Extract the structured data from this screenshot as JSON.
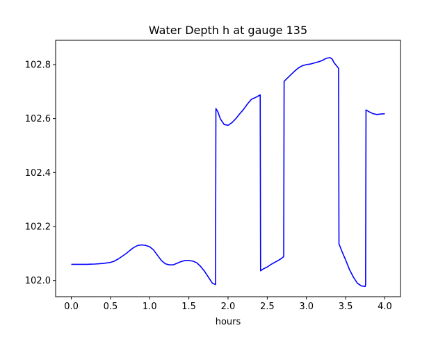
{
  "chart_data": {
    "type": "line",
    "title": "Water Depth h at gauge 135",
    "xlabel": "hours",
    "ylabel": "",
    "xlim": [
      -0.2,
      4.2
    ],
    "ylim": [
      101.94,
      102.89
    ],
    "xticks": [
      0.0,
      0.5,
      1.0,
      1.5,
      2.0,
      2.5,
      3.0,
      3.5,
      4.0
    ],
    "xtick_labels": [
      "0.0",
      "0.5",
      "1.0",
      "1.5",
      "2.0",
      "2.5",
      "3.0",
      "3.5",
      "4.0"
    ],
    "yticks": [
      102.0,
      102.2,
      102.4,
      102.6,
      102.8
    ],
    "ytick_labels": [
      "102.0",
      "102.2",
      "102.4",
      "102.6",
      "102.8"
    ],
    "grid": false,
    "legend": "none",
    "series": [
      {
        "color": "#0000ff",
        "x": [
          0.0,
          0.1,
          0.2,
          0.3,
          0.4,
          0.5,
          0.55,
          0.6,
          0.65,
          0.7,
          0.75,
          0.8,
          0.85,
          0.9,
          0.95,
          1.0,
          1.05,
          1.1,
          1.15,
          1.2,
          1.25,
          1.3,
          1.35,
          1.4,
          1.45,
          1.5,
          1.55,
          1.6,
          1.65,
          1.7,
          1.75,
          1.8,
          1.84,
          1.845,
          1.87,
          1.9,
          1.95,
          2.0,
          2.05,
          2.1,
          2.15,
          2.2,
          2.25,
          2.3,
          2.35,
          2.4,
          2.41,
          2.415,
          2.45,
          2.5,
          2.55,
          2.6,
          2.65,
          2.7,
          2.71,
          2.715,
          2.75,
          2.8,
          2.85,
          2.9,
          2.95,
          3.0,
          3.05,
          3.1,
          3.15,
          3.2,
          3.25,
          3.3,
          3.33,
          3.35,
          3.4,
          3.41,
          3.415,
          3.45,
          3.5,
          3.55,
          3.6,
          3.65,
          3.7,
          3.75,
          3.755,
          3.76,
          3.8,
          3.85,
          3.9,
          3.95,
          4.0
        ],
        "y": [
          102.06,
          102.06,
          102.06,
          102.061,
          102.063,
          102.067,
          102.072,
          102.08,
          102.09,
          102.1,
          102.112,
          102.123,
          102.13,
          102.132,
          102.13,
          102.125,
          102.113,
          102.093,
          102.074,
          102.062,
          102.058,
          102.058,
          102.064,
          102.07,
          102.074,
          102.074,
          102.072,
          102.066,
          102.052,
          102.034,
          102.012,
          101.99,
          101.985,
          102.637,
          102.625,
          102.6,
          102.578,
          102.575,
          102.585,
          102.6,
          102.618,
          102.635,
          102.655,
          102.672,
          102.678,
          102.686,
          102.688,
          102.036,
          102.043,
          102.05,
          102.06,
          102.068,
          102.076,
          102.086,
          102.09,
          102.738,
          102.748,
          102.762,
          102.776,
          102.788,
          102.796,
          102.8,
          102.802,
          102.806,
          102.81,
          102.815,
          102.823,
          102.826,
          102.82,
          102.808,
          102.79,
          102.786,
          102.136,
          102.11,
          102.076,
          102.04,
          102.012,
          101.99,
          101.98,
          101.978,
          101.985,
          102.632,
          102.625,
          102.618,
          102.615,
          102.617,
          102.618
        ]
      }
    ]
  }
}
